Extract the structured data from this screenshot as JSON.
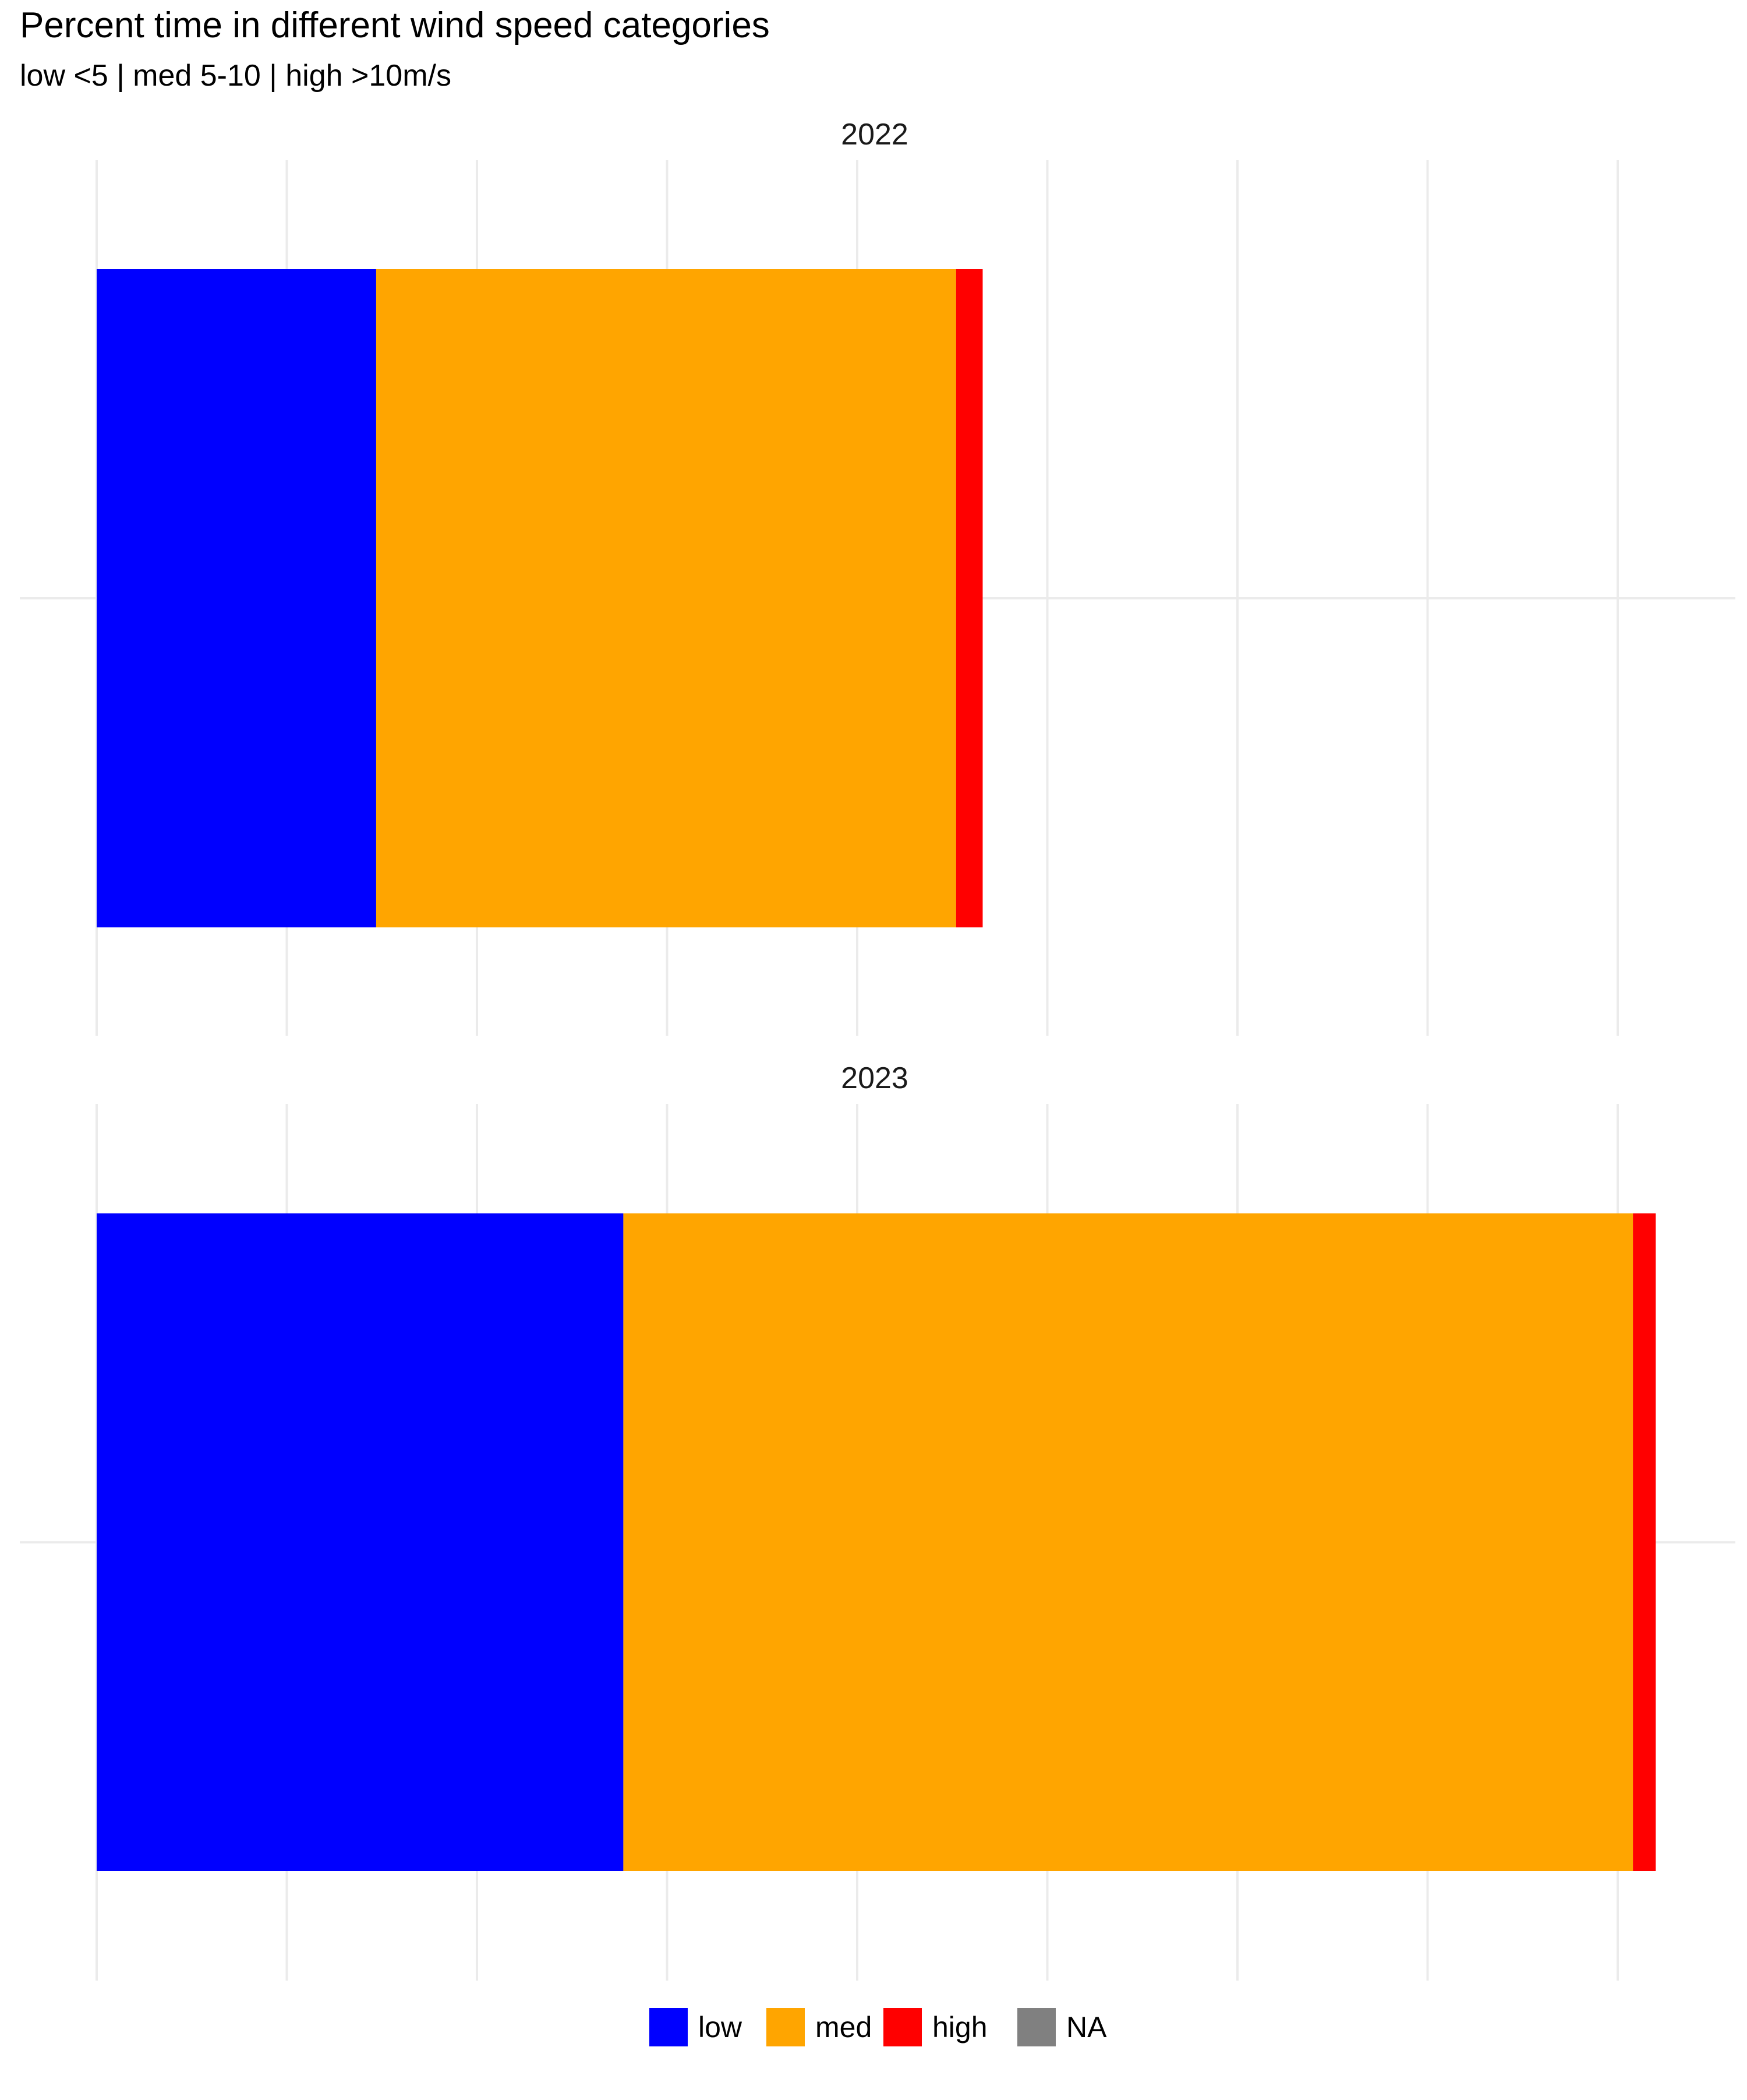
{
  "chart_data": {
    "type": "bar",
    "orientation": "horizontal",
    "stacked": true,
    "title": "Percent time in different wind speed categories",
    "subtitle": "low <5 | med 5-10 | high >10m/s",
    "xlim": [
      0,
      8.4
    ],
    "x_gridlines": [
      0,
      1,
      2,
      3,
      4,
      5,
      6,
      7,
      8
    ],
    "grid": true,
    "legend_position": "bottom",
    "legend": [
      {
        "key": "low",
        "label": "low",
        "color": "#0000FF"
      },
      {
        "key": "med",
        "label": "med",
        "color": "#FFA500"
      },
      {
        "key": "high",
        "label": "high",
        "color": "#FF0000"
      },
      {
        "key": "na",
        "label": "NA",
        "color": "#808080"
      }
    ],
    "facets": [
      {
        "label": "2022",
        "segments": [
          {
            "key": "low",
            "value": 1.47
          },
          {
            "key": "med",
            "value": 3.05
          },
          {
            "key": "high",
            "value": 0.14
          }
        ]
      },
      {
        "label": "2023",
        "segments": [
          {
            "key": "low",
            "value": 2.77
          },
          {
            "key": "med",
            "value": 5.31
          },
          {
            "key": "high",
            "value": 0.12
          }
        ]
      }
    ]
  }
}
